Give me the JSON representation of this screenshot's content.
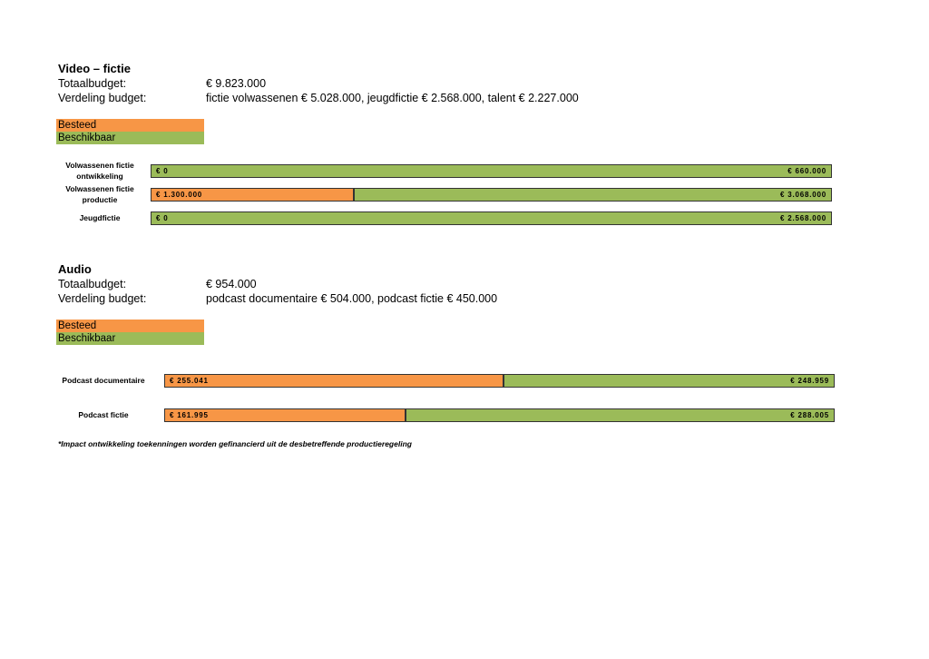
{
  "chart_data": [
    {
      "type": "bar",
      "orientation": "horizontal",
      "stacked": "percent",
      "title": "Video – fictie",
      "details": [
        [
          "Totaalbudget:",
          "€ 9.823.000"
        ],
        [
          "Verdeling budget:",
          "fictie volwassenen € 5.028.000, jeugdfictie € 2.568.000, talent € 2.227.000"
        ]
      ],
      "categories": [
        "Volwassenen fictie ontwikkeling",
        "Volwassenen fictie productie",
        "Jeugdfictie"
      ],
      "series": [
        {
          "name": "Besteed",
          "color": "#f79646",
          "values": [
            0,
            1300000,
            0
          ],
          "value_labels": [
            "€ 0",
            "€ 1.300.000",
            "€ 0"
          ]
        },
        {
          "name": "Beschikbaar",
          "color": "#9bbb59",
          "values": [
            660000,
            3068000,
            2568000
          ],
          "value_labels": [
            "€ 660.000",
            "€ 3.068.000",
            "€ 2.568.000"
          ]
        }
      ]
    },
    {
      "type": "bar",
      "orientation": "horizontal",
      "stacked": "percent",
      "title": "Audio",
      "details": [
        [
          "Totaalbudget:",
          "€ 954.000"
        ],
        [
          "Verdeling budget:",
          "podcast documentaire € 504.000, podcast fictie € 450.000"
        ]
      ],
      "categories": [
        "Podcast documentaire",
        "Podcast fictie"
      ],
      "series": [
        {
          "name": "Besteed",
          "color": "#f79646",
          "values": [
            255041,
            161995
          ],
          "value_labels": [
            "€ 255.041",
            "€ 161.995"
          ]
        },
        {
          "name": "Beschikbaar",
          "color": "#9bbb59",
          "values": [
            248959,
            288005
          ],
          "value_labels": [
            "€ 248.959",
            "€ 288.005"
          ]
        }
      ]
    }
  ],
  "footnote": "*Impact ontwikkeling toekenningen worden gefinancierd uit de desbetreffende productieregeling"
}
